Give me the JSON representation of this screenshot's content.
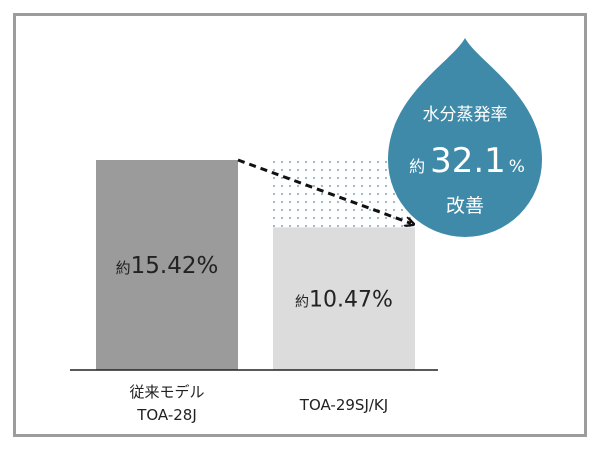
{
  "chart_data": {
    "type": "bar",
    "categories": [
      [
        "従来モデル",
        "TOA-28J"
      ],
      [
        "TOA-29SJ/KJ"
      ]
    ],
    "values": [
      15.42,
      10.47
    ],
    "value_labels": [
      {
        "prefix": "約",
        "number": "15.42%"
      },
      {
        "prefix": "約",
        "number": "10.47%"
      }
    ],
    "ylim": [
      0,
      16.8
    ],
    "colors": [
      "#9b9b9b",
      "#dcdcdc"
    ],
    "dotted_fill_color": "#8fb7c6",
    "arrow": "dashed, from top of bar 1 to top of bar 2",
    "callout": {
      "line1": "水分蒸発率",
      "prefix": "約",
      "number": "32.1",
      "suffix": "%",
      "line3": "改善",
      "color": "#3f8aa8",
      "value": 32.1
    },
    "grid": false,
    "legend": "none"
  }
}
